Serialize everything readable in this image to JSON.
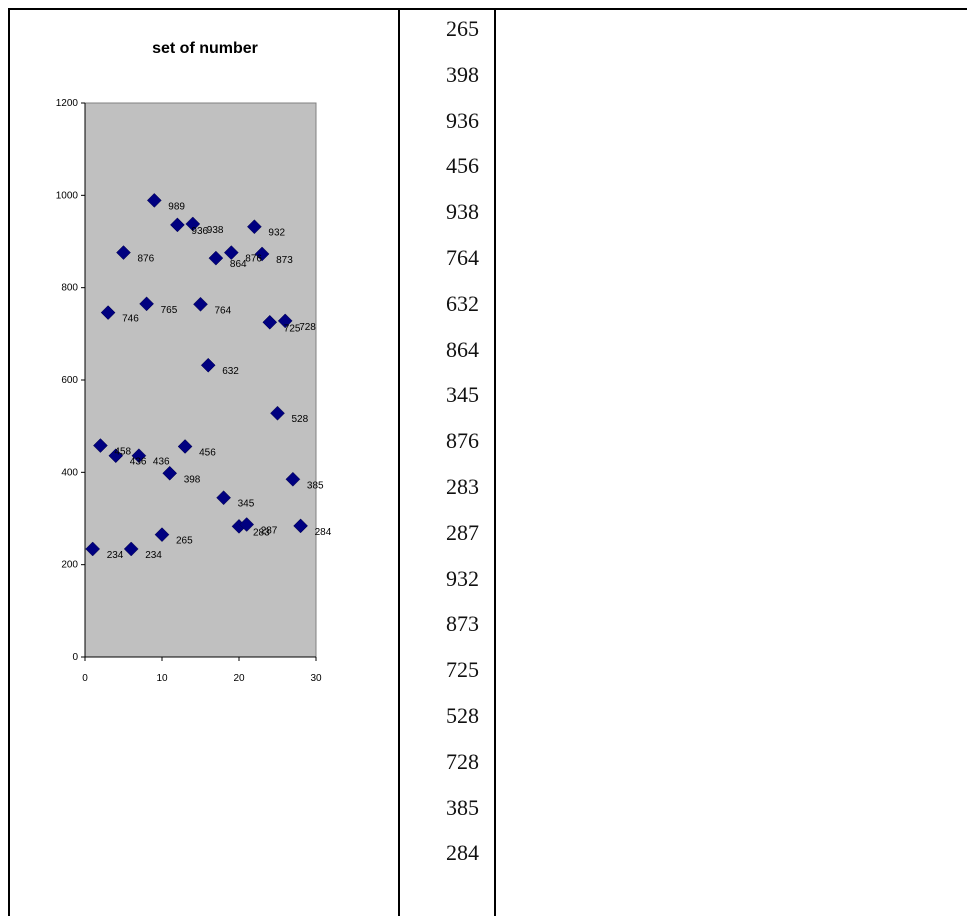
{
  "chart_data": {
    "type": "scatter",
    "title": "set of number",
    "xlabel": "",
    "ylabel": "",
    "xlim": [
      0,
      30
    ],
    "ylim": [
      0,
      1200
    ],
    "xticks": [
      "0",
      "10",
      "20",
      "30"
    ],
    "yticks": [
      "0",
      "200",
      "400",
      "600",
      "800",
      "1000",
      "1200"
    ],
    "grid": false,
    "legend": "none",
    "plot_background": "#c0c0c0",
    "marker_color": "#000080",
    "marker": "diamond",
    "x": [
      1,
      2,
      3,
      4,
      5,
      6,
      7,
      8,
      9,
      10,
      11,
      12,
      13,
      14,
      15,
      16,
      17,
      18,
      19,
      20,
      21,
      22,
      23,
      24,
      25,
      26,
      27,
      28
    ],
    "y": [
      234,
      458,
      746,
      436,
      876,
      234,
      436,
      765,
      989,
      265,
      398,
      936,
      456,
      938,
      764,
      632,
      864,
      345,
      876,
      283,
      287,
      932,
      873,
      725,
      528,
      728,
      385,
      284
    ],
    "data_labels": [
      "234",
      "458",
      "746",
      "436",
      "876",
      "234",
      "436",
      "765",
      "989",
      "265",
      "398",
      "936",
      "456",
      "938",
      "764",
      "632",
      "864",
      "345",
      "876",
      "283",
      "287",
      "932",
      "873",
      "725",
      "528",
      "728",
      "385",
      "284"
    ]
  },
  "number_list": [
    "265",
    "398",
    "936",
    "456",
    "938",
    "764",
    "632",
    "864",
    "345",
    "876",
    "283",
    "287",
    "932",
    "873",
    "725",
    "528",
    "728",
    "385",
    "284"
  ]
}
